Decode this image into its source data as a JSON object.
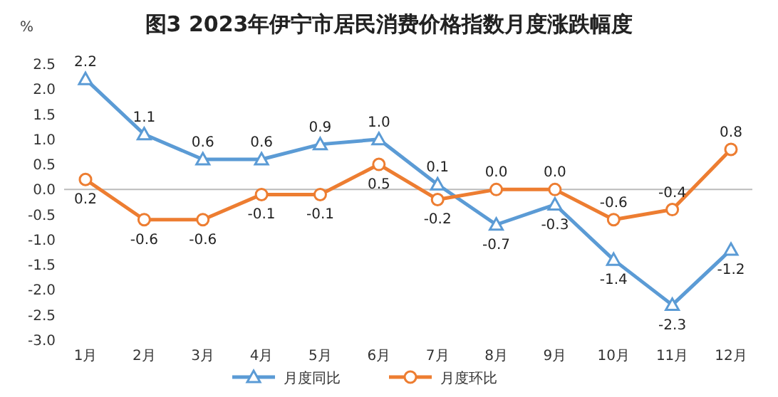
{
  "chart_data": {
    "type": "line",
    "title": "图3 2023年伊宁市居民消费价格指数月度涨跌幅度",
    "ylabel": "%",
    "categories": [
      "1月",
      "2月",
      "3月",
      "4月",
      "5月",
      "6月",
      "7月",
      "8月",
      "9月",
      "10月",
      "11月",
      "12月"
    ],
    "series": [
      {
        "name": "月度同比",
        "color": "#5b9bd5",
        "marker": "triangle",
        "values": [
          2.2,
          1.1,
          0.6,
          0.6,
          0.9,
          1.0,
          0.1,
          -0.7,
          -0.3,
          -1.4,
          -2.3,
          -1.2
        ],
        "value_labels": [
          "2.2",
          "1.1",
          "0.6",
          "0.6",
          "0.9",
          "1.0",
          "0.1",
          "-0.7",
          "-0.3",
          "-1.4",
          "-2.3",
          "-1.2"
        ]
      },
      {
        "name": "月度环比",
        "color": "#ed7d31",
        "marker": "circle",
        "values": [
          0.2,
          -0.6,
          -0.6,
          -0.1,
          -0.1,
          0.5,
          -0.2,
          0.0,
          0.0,
          -0.6,
          -0.4,
          0.8
        ],
        "value_labels": [
          "0.2",
          "-0.6",
          "-0.6",
          "-0.1",
          "-0.1",
          "0.5",
          "-0.2",
          "0.0",
          "0.0",
          "-0.6",
          "-0.4",
          "0.8"
        ]
      }
    ],
    "ylim": [
      -3.0,
      2.5
    ],
    "yticks": [
      {
        "value": -3,
        "label": "-3.0"
      },
      {
        "value": -2.5,
        "label": "-2.5"
      },
      {
        "value": -2,
        "label": "-2.0"
      },
      {
        "value": -1.5,
        "label": "-1.5"
      },
      {
        "value": -1,
        "label": "-1.0"
      },
      {
        "value": -0.5,
        "label": "-0.5"
      },
      {
        "value": 0,
        "label": "0.0"
      },
      {
        "value": 0.5,
        "label": "0.5"
      },
      {
        "value": 1,
        "label": "1.0"
      },
      {
        "value": 1.5,
        "label": "1.5"
      },
      {
        "value": 2,
        "label": "2.0"
      },
      {
        "value": 2.5,
        "label": "2.5"
      }
    ],
    "legend": "bottom",
    "line_style": "solid"
  }
}
